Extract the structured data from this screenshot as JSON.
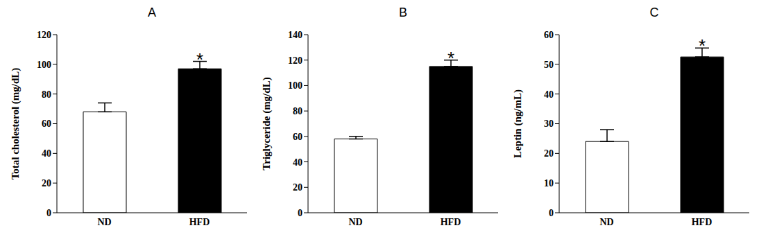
{
  "chart_data": [
    {
      "type": "bar",
      "title": "A",
      "ylabel": "Total cholesterol (mg/dL)",
      "categories": [
        "ND",
        "HFD"
      ],
      "values": [
        68,
        97
      ],
      "errors": [
        6,
        5
      ],
      "colors": [
        "#ffffff",
        "#000000"
      ],
      "ylim": [
        0,
        120
      ],
      "yticks": [
        0,
        20,
        40,
        60,
        80,
        100,
        120
      ],
      "annotations": [
        {
          "category": "HFD",
          "text": "*"
        }
      ]
    },
    {
      "type": "bar",
      "title": "B",
      "ylabel": "Triglyceride (mg/dL)",
      "categories": [
        "ND",
        "HFD"
      ],
      "values": [
        58,
        115
      ],
      "errors": [
        2,
        5
      ],
      "colors": [
        "#ffffff",
        "#000000"
      ],
      "ylim": [
        0,
        140
      ],
      "yticks": [
        0,
        20,
        40,
        60,
        80,
        100,
        120,
        140
      ],
      "annotations": [
        {
          "category": "HFD",
          "text": "*"
        }
      ]
    },
    {
      "type": "bar",
      "title": "C",
      "ylabel": "Leptin (ng/mL)",
      "categories": [
        "ND",
        "HFD"
      ],
      "values": [
        24,
        52.5
      ],
      "errors": [
        4,
        3
      ],
      "colors": [
        "#ffffff",
        "#000000"
      ],
      "ylim": [
        0,
        60
      ],
      "yticks": [
        0,
        10,
        20,
        30,
        40,
        50,
        60
      ],
      "annotations": [
        {
          "category": "HFD",
          "text": "*"
        }
      ]
    }
  ]
}
